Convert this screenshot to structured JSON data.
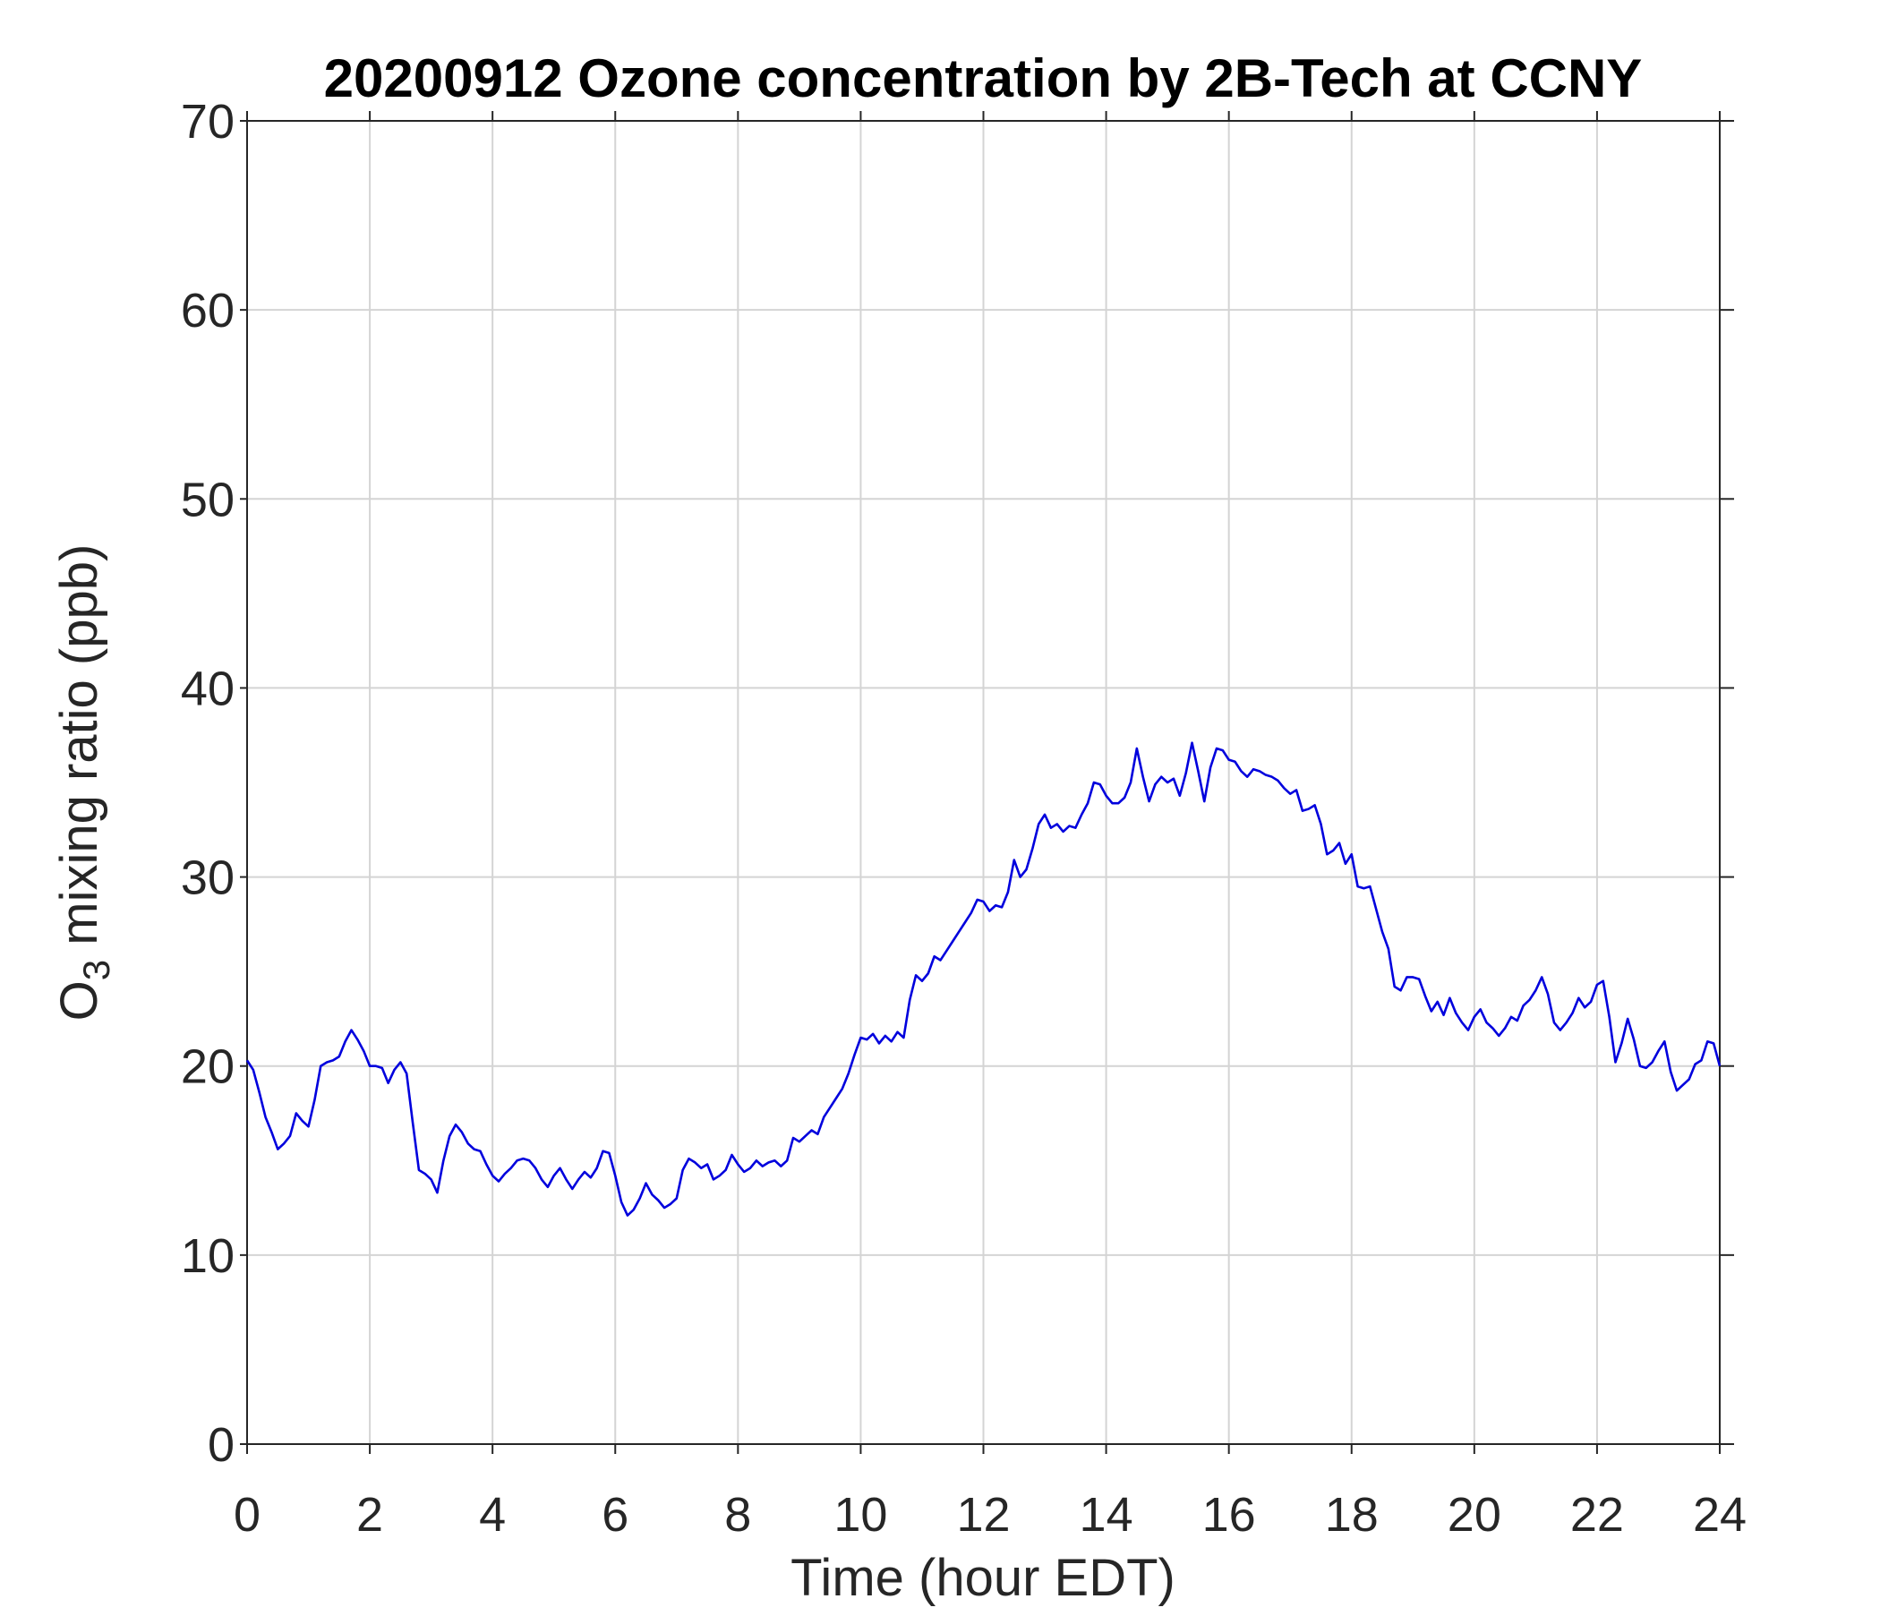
{
  "chart_data": {
    "type": "line",
    "title": "20200912 Ozone concentration by 2B-Tech at CCNY",
    "x_label": "Time (hour EDT)",
    "y_label_parts": [
      "O",
      "3",
      " mixing ratio (ppb)"
    ],
    "xlim": [
      0,
      24
    ],
    "xticks": [
      0,
      2,
      4,
      6,
      8,
      10,
      12,
      14,
      16,
      18,
      20,
      22,
      24
    ],
    "ylim": [
      0,
      70
    ],
    "yticks": [
      0,
      10,
      20,
      30,
      40,
      50,
      60,
      70
    ],
    "grid": true,
    "x": [
      0,
      0.1,
      0.2,
      0.3,
      0.4,
      0.5,
      0.6,
      0.7,
      0.8,
      0.9,
      1,
      1.1,
      1.2,
      1.3,
      1.4,
      1.5,
      1.6,
      1.7,
      1.8,
      1.9,
      2,
      2.1,
      2.2,
      2.3,
      2.4,
      2.5,
      2.6,
      2.7,
      2.8,
      2.9,
      3,
      3.1,
      3.2,
      3.3,
      3.4,
      3.5,
      3.6,
      3.7,
      3.8,
      3.9,
      4,
      4.1,
      4.2,
      4.3,
      4.4,
      4.5,
      4.6,
      4.7,
      4.8,
      4.9,
      5,
      5.1,
      5.2,
      5.3,
      5.4,
      5.5,
      5.6,
      5.7,
      5.8,
      5.9,
      6,
      6.1,
      6.2,
      6.3,
      6.4,
      6.5,
      6.6,
      6.7,
      6.8,
      6.9,
      7,
      7.1,
      7.2,
      7.3,
      7.4,
      7.5,
      7.6,
      7.7,
      7.8,
      7.9,
      8,
      8.1,
      8.2,
      8.3,
      8.4,
      8.5,
      8.6,
      8.7,
      8.8,
      8.9,
      9,
      9.1,
      9.2,
      9.3,
      9.4,
      9.5,
      9.6,
      9.7,
      9.8,
      9.9,
      10,
      10.1,
      10.2,
      10.3,
      10.4,
      10.5,
      10.6,
      10.7,
      10.8,
      10.9,
      11,
      11.1,
      11.2,
      11.3,
      11.4,
      11.5,
      11.6,
      11.7,
      11.8,
      11.9,
      12,
      12.1,
      12.2,
      12.3,
      12.4,
      12.5,
      12.6,
      12.7,
      12.8,
      12.9,
      13,
      13.1,
      13.2,
      13.3,
      13.4,
      13.5,
      13.6,
      13.7,
      13.8,
      13.9,
      14,
      14.1,
      14.2,
      14.3,
      14.4,
      14.5,
      14.6,
      14.7,
      14.8,
      14.9,
      15,
      15.1,
      15.2,
      15.3,
      15.4,
      15.5,
      15.6,
      15.7,
      15.8,
      15.9,
      16,
      16.1,
      16.2,
      16.3,
      16.4,
      16.5,
      16.6,
      16.7,
      16.8,
      16.9,
      17,
      17.1,
      17.2,
      17.3,
      17.4,
      17.5,
      17.6,
      17.7,
      17.8,
      17.9,
      18,
      18.1,
      18.2,
      18.3,
      18.4,
      18.5,
      18.6,
      18.7,
      18.8,
      18.9,
      19,
      19.1,
      19.2,
      19.3,
      19.4,
      19.5,
      19.6,
      19.7,
      19.8,
      19.9,
      20,
      20.1,
      20.2,
      20.3,
      20.4,
      20.5,
      20.6,
      20.7,
      20.8,
      20.9,
      21,
      21.1,
      21.2,
      21.3,
      21.4,
      21.5,
      21.6,
      21.7,
      21.8,
      21.9,
      22,
      22.1,
      22.2,
      22.3,
      22.4,
      22.5,
      22.6,
      22.7,
      22.8,
      22.9,
      23,
      23.1,
      23.2,
      23.3,
      23.4,
      23.5,
      23.6,
      23.7,
      23.8,
      23.9,
      24
    ],
    "series": [
      {
        "color": "#0000dd",
        "values": [
          20.3,
          19.8,
          18.6,
          17.3,
          16.5,
          15.6,
          15.9,
          16.3,
          17.5,
          17.1,
          16.8,
          18.2,
          20.0,
          20.2,
          20.3,
          20.5,
          21.3,
          21.9,
          21.4,
          20.8,
          20.0,
          20.0,
          19.9,
          19.1,
          19.8,
          20.2,
          19.6,
          17.0,
          14.5,
          14.3,
          14.0,
          13.3,
          15.0,
          16.3,
          16.9,
          16.5,
          15.9,
          15.6,
          15.5,
          14.8,
          14.2,
          13.9,
          14.3,
          14.6,
          15.0,
          15.1,
          15.0,
          14.6,
          14.0,
          13.6,
          14.2,
          14.6,
          14.0,
          13.5,
          14.0,
          14.4,
          14.1,
          14.6,
          15.5,
          15.4,
          14.2,
          12.8,
          12.1,
          12.4,
          13.0,
          13.8,
          13.2,
          12.9,
          12.5,
          12.7,
          13.0,
          14.5,
          15.1,
          14.9,
          14.6,
          14.8,
          14.0,
          14.2,
          14.5,
          15.3,
          14.8,
          14.4,
          14.6,
          15.0,
          14.7,
          14.9,
          15.0,
          14.7,
          15.0,
          16.2,
          16.0,
          16.3,
          16.6,
          16.4,
          17.3,
          17.8,
          18.3,
          18.8,
          19.6,
          20.6,
          21.5,
          21.4,
          21.7,
          21.2,
          21.6,
          21.3,
          21.8,
          21.5,
          23.5,
          24.8,
          24.5,
          24.9,
          25.8,
          25.6,
          26.1,
          26.6,
          27.1,
          27.6,
          28.1,
          28.8,
          28.7,
          28.2,
          28.5,
          28.4,
          29.2,
          30.9,
          30.0,
          30.4,
          31.5,
          32.8,
          33.3,
          32.6,
          32.8,
          32.4,
          32.7,
          32.6,
          33.3,
          33.9,
          35.0,
          34.9,
          34.3,
          33.9,
          33.9,
          34.2,
          35.0,
          36.8,
          35.3,
          34.0,
          34.9,
          35.3,
          35.0,
          35.2,
          34.3,
          35.5,
          37.1,
          35.6,
          34.0,
          35.8,
          36.8,
          36.7,
          36.2,
          36.1,
          35.6,
          35.3,
          35.7,
          35.6,
          35.4,
          35.3,
          35.1,
          34.7,
          34.4,
          34.6,
          33.5,
          33.6,
          33.8,
          32.8,
          31.2,
          31.4,
          31.8,
          30.7,
          31.2,
          29.5,
          29.4,
          29.5,
          28.3,
          27.1,
          26.2,
          24.2,
          24.0,
          24.7,
          24.7,
          24.6,
          23.7,
          22.9,
          23.4,
          22.7,
          23.6,
          22.8,
          22.3,
          21.9,
          22.6,
          23.0,
          22.3,
          22.0,
          21.6,
          22.0,
          22.6,
          22.4,
          23.2,
          23.5,
          24.0,
          24.7,
          23.8,
          22.3,
          21.9,
          22.3,
          22.8,
          23.6,
          23.1,
          23.4,
          24.3,
          24.5,
          22.6,
          20.2,
          21.2,
          22.5,
          21.4,
          20.0,
          19.9,
          20.2,
          20.8,
          21.3,
          19.7,
          18.7,
          19.0,
          19.3,
          20.1,
          20.3,
          21.3,
          21.2,
          20.0
        ]
      }
    ]
  }
}
